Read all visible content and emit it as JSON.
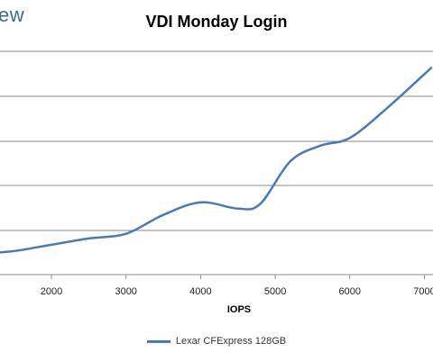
{
  "brand": "ew",
  "chart_data": {
    "type": "line",
    "title": "VDI Monday Login",
    "xlabel": "IOPS",
    "ylabel": "",
    "x_ticks": [
      2000,
      3000,
      4000,
      5000,
      6000,
      7000
    ],
    "x_tick_labels": [
      "2000",
      "3000",
      "4000",
      "5000",
      "6000",
      "7000"
    ],
    "xlim": [
      1000,
      7100
    ],
    "grid": true,
    "legend_position": "bottom",
    "series": [
      {
        "name": "Lexar CFExpress 128GB",
        "color": "#4a7ab5",
        "x": [
          1000,
          1500,
          2000,
          2500,
          3000,
          3500,
          4000,
          4500,
          4800,
          5200,
          5600,
          6000,
          6500,
          7100
        ],
        "y": [
          0.65,
          0.75,
          0.95,
          1.15,
          1.3,
          1.9,
          2.3,
          2.1,
          2.25,
          3.6,
          4.1,
          4.35,
          5.3,
          6.6
        ]
      }
    ]
  }
}
